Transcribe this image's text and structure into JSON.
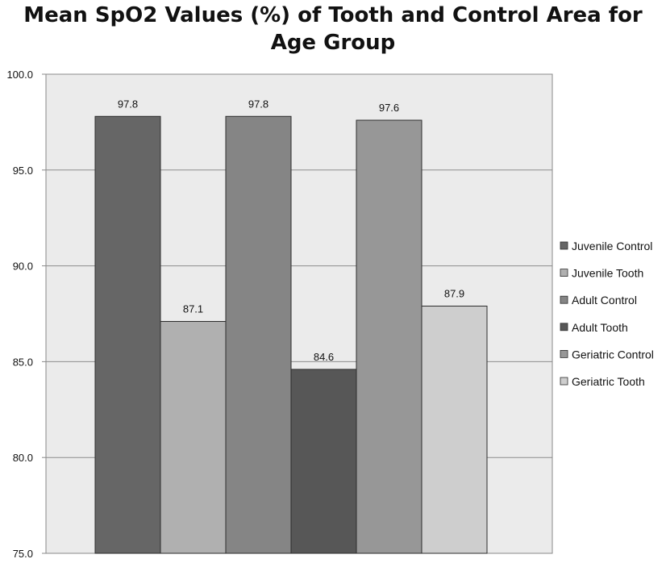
{
  "chart_data": {
    "type": "bar",
    "title": "Mean SpO2 Values (%) of Tooth and Control Area for Age Group",
    "title_lines": [
      "Mean SpO2 Values (%) of Tooth and Control Area for",
      "Age Group"
    ],
    "xlabel": "",
    "ylabel": "",
    "ylim": [
      75,
      100
    ],
    "yticks": [
      "75.0",
      "80.0",
      "85.0",
      "90.0",
      "95.0",
      "100.0"
    ],
    "ytick_values": [
      75,
      80,
      85,
      90,
      95,
      100
    ],
    "grid": true,
    "legend_position": "right",
    "series": [
      {
        "name": "Juvenile Control",
        "values": [
          97.8
        ],
        "label": "97.8",
        "color": "#666666"
      },
      {
        "name": "Juvenile Tooth",
        "values": [
          87.1
        ],
        "label": "87.1",
        "color": "#b0b0b0"
      },
      {
        "name": "Adult Control",
        "values": [
          97.8
        ],
        "label": "97.8",
        "color": "#858585"
      },
      {
        "name": "Adult Tooth",
        "values": [
          84.6
        ],
        "label": "84.6",
        "color": "#575757"
      },
      {
        "name": "Geriatric Control",
        "values": [
          97.6
        ],
        "label": "97.6",
        "color": "#979797"
      },
      {
        "name": "Geriatric Tooth",
        "values": [
          87.9
        ],
        "label": "87.9",
        "color": "#cecece"
      }
    ]
  }
}
